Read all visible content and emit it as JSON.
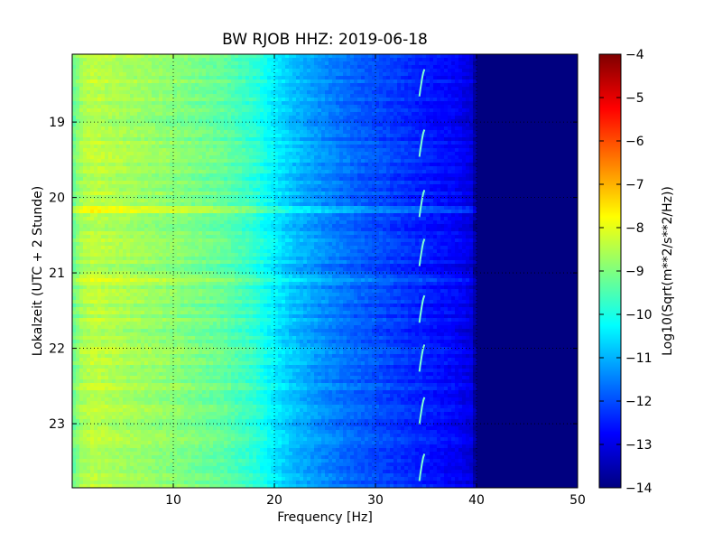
{
  "chart_data": {
    "type": "heatmap",
    "title": "BW RJOB HHZ: 2019-06-18",
    "xlabel": "Frequency [Hz]",
    "ylabel": "Lokalzeit (UTC + 2 Stunde)",
    "xlim": [
      0,
      50
    ],
    "ylim": [
      18.1,
      23.85
    ],
    "y_inverted": true,
    "x_ticks": [
      10,
      20,
      30,
      40,
      50
    ],
    "y_ticks": [
      19,
      20,
      21,
      22,
      23
    ],
    "grid": true,
    "colormap": "jet",
    "colorbar": {
      "label": "Log10(Sqrt(m**2/s**2/Hz))",
      "range": [
        -14,
        -4
      ],
      "ticks": [
        -14,
        -13,
        -12,
        -11,
        -10,
        -9,
        -8,
        -7,
        -6,
        -5,
        -4
      ],
      "colors": [
        "#00007f",
        "#0000ff",
        "#007fff",
        "#00ffff",
        "#7fff7f",
        "#ffff00",
        "#ff7f00",
        "#ff0000",
        "#7f0000"
      ]
    },
    "spectrum_profile": {
      "frequency_hz": [
        0,
        1,
        2,
        5,
        10,
        15,
        18,
        20,
        22,
        25,
        28,
        30,
        33,
        35,
        38,
        39.5,
        40,
        50
      ],
      "log10_level": [
        -9.3,
        -8.6,
        -8.4,
        -8.6,
        -8.9,
        -9.3,
        -9.8,
        -10.4,
        -10.9,
        -11.4,
        -11.8,
        -12.0,
        -12.3,
        -12.5,
        -12.8,
        -13.1,
        -14.0,
        -14.0
      ]
    },
    "quiet_floor_from_hz": 40,
    "broadband_events_hour": [
      20.15,
      21.1
    ],
    "event_frequency_hz": 34.5,
    "event_start_hours": [
      18.3,
      19.1,
      19.9,
      20.55,
      21.3,
      21.95,
      22.65,
      23.4
    ]
  }
}
